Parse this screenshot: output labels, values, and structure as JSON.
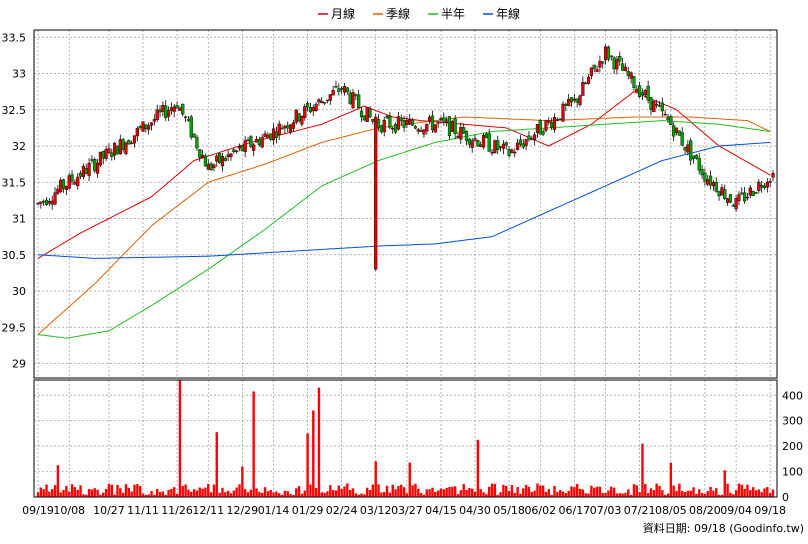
{
  "chart_data": {
    "type": "candlestick",
    "legend": {
      "placement": "top",
      "entries": [
        {
          "label": "月線",
          "color": "#e00000"
        },
        {
          "label": "季線",
          "color": "#e06000"
        },
        {
          "label": "半年",
          "color": "#20c020"
        },
        {
          "label": "年線",
          "color": "#0050d0"
        }
      ]
    },
    "price_axis": {
      "range": [
        28.8,
        33.6
      ],
      "ticks": [
        "29",
        "29.5",
        "30",
        "30.5",
        "31",
        "31.5",
        "32",
        "32.5",
        "33",
        "33.5"
      ],
      "tick_values": [
        29,
        29.5,
        30,
        30.5,
        31,
        31.5,
        32,
        32.5,
        33,
        33.5
      ]
    },
    "volume_axis": {
      "range": [
        0,
        460
      ],
      "ticks": [
        "0",
        "100",
        "200",
        "300",
        "400"
      ],
      "tick_values": [
        0,
        100,
        200,
        300,
        400
      ]
    },
    "x_axis": {
      "ticks": [
        {
          "label": "09/19",
          "index": 0
        },
        {
          "label": "10/08",
          "index": 11
        },
        {
          "label": "10/27",
          "index": 25
        },
        {
          "label": "11/11",
          "index": 37
        },
        {
          "label": "11/26",
          "index": 49
        },
        {
          "label": "12/11",
          "index": 60
        },
        {
          "label": "12/29",
          "index": 72
        },
        {
          "label": "01/14",
          "index": 83
        },
        {
          "label": "01/29",
          "index": 95
        },
        {
          "label": "02/24",
          "index": 107
        },
        {
          "label": "03/12",
          "index": 119
        },
        {
          "label": "03/27",
          "index": 130
        },
        {
          "label": "04/15",
          "index": 142
        },
        {
          "label": "04/30",
          "index": 154
        },
        {
          "label": "05/18",
          "index": 166
        },
        {
          "label": "06/02",
          "index": 177
        },
        {
          "label": "06/17",
          "index": 189
        },
        {
          "label": "07/03",
          "index": 200
        },
        {
          "label": "07/21",
          "index": 212
        },
        {
          "label": "08/05",
          "index": 223
        },
        {
          "label": "08/20",
          "index": 235
        },
        {
          "label": "09/04",
          "index": 246
        },
        {
          "label": "09/18",
          "index": 258
        }
      ]
    },
    "grid": true,
    "n_bars": 260,
    "candles_summary": [
      {
        "date": "09/19",
        "close": 31.2
      },
      {
        "date": "10/27",
        "close": 31.9
      },
      {
        "date": "11/26",
        "close": 32.6
      },
      {
        "date": "12/11",
        "close": 31.7
      },
      {
        "date": "01/14",
        "close": 32.2
      },
      {
        "date": "02/24",
        "close": 32.8
      },
      {
        "date": "03/12",
        "close": 32.3
      },
      {
        "date": "04/15",
        "close": 32.3
      },
      {
        "date": "05/18",
        "close": 31.9
      },
      {
        "date": "06/17",
        "close": 32.6
      },
      {
        "date": "07/03",
        "close": 33.3
      },
      {
        "date": "08/05",
        "close": 32.3
      },
      {
        "date": "08/20",
        "close": 31.6
      },
      {
        "date": "09/04",
        "close": 31.2
      },
      {
        "date": "09/18",
        "close": 31.6
      }
    ],
    "volume_spikes": [
      {
        "index": 7,
        "value": 125
      },
      {
        "index": 50,
        "value": 470
      },
      {
        "index": 63,
        "value": 255
      },
      {
        "index": 72,
        "value": 120
      },
      {
        "index": 76,
        "value": 415
      },
      {
        "index": 95,
        "value": 250
      },
      {
        "index": 97,
        "value": 340
      },
      {
        "index": 99,
        "value": 430
      },
      {
        "index": 119,
        "value": 140
      },
      {
        "index": 131,
        "value": 135
      },
      {
        "index": 155,
        "value": 225
      },
      {
        "index": 213,
        "value": 210
      },
      {
        "index": 223,
        "value": 135
      },
      {
        "index": 242,
        "value": 105
      }
    ],
    "moving_averages": {
      "月線": [
        [
          0,
          30.45
        ],
        [
          15,
          30.8
        ],
        [
          40,
          31.3
        ],
        [
          55,
          31.8
        ],
        [
          75,
          32.05
        ],
        [
          100,
          32.3
        ],
        [
          115,
          32.55
        ],
        [
          125,
          32.4
        ],
        [
          135,
          32.35
        ],
        [
          150,
          32.3
        ],
        [
          165,
          32.25
        ],
        [
          180,
          32.0
        ],
        [
          195,
          32.3
        ],
        [
          210,
          32.75
        ],
        [
          225,
          32.5
        ],
        [
          240,
          32.0
        ],
        [
          258,
          31.6
        ]
      ],
      "季線": [
        [
          0,
          29.4
        ],
        [
          20,
          30.1
        ],
        [
          40,
          30.9
        ],
        [
          60,
          31.5
        ],
        [
          80,
          31.75
        ],
        [
          100,
          32.05
        ],
        [
          120,
          32.25
        ],
        [
          150,
          32.4
        ],
        [
          180,
          32.35
        ],
        [
          210,
          32.4
        ],
        [
          230,
          32.4
        ],
        [
          250,
          32.35
        ],
        [
          258,
          32.2
        ]
      ],
      "半年": [
        [
          0,
          29.4
        ],
        [
          10,
          29.35
        ],
        [
          25,
          29.45
        ],
        [
          40,
          29.8
        ],
        [
          60,
          30.3
        ],
        [
          80,
          30.85
        ],
        [
          100,
          31.45
        ],
        [
          120,
          31.8
        ],
        [
          140,
          32.05
        ],
        [
          160,
          32.2
        ],
        [
          180,
          32.25
        ],
        [
          200,
          32.3
        ],
        [
          220,
          32.35
        ],
        [
          240,
          32.3
        ],
        [
          258,
          32.2
        ]
      ],
      "年線": [
        [
          0,
          30.5
        ],
        [
          20,
          30.45
        ],
        [
          60,
          30.48
        ],
        [
          90,
          30.55
        ],
        [
          120,
          30.62
        ],
        [
          140,
          30.65
        ],
        [
          160,
          30.75
        ],
        [
          180,
          31.1
        ],
        [
          200,
          31.45
        ],
        [
          220,
          31.8
        ],
        [
          240,
          32.0
        ],
        [
          258,
          32.05
        ]
      ]
    }
  },
  "footer": {
    "source_text": "資料日期: 09/18 (Goodinfo.tw)"
  }
}
